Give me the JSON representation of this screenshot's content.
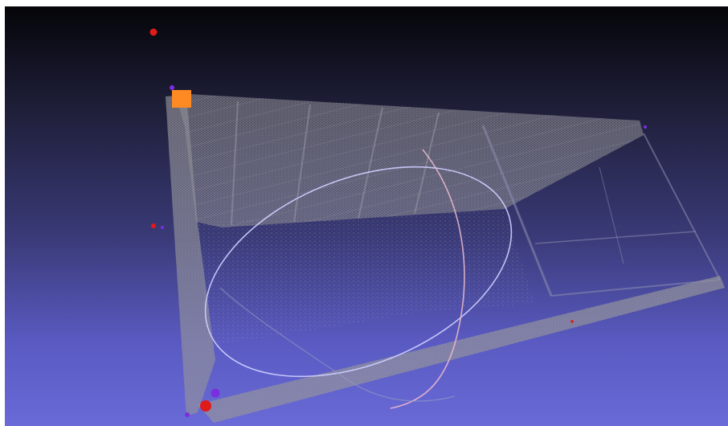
{
  "scene": {
    "description_hidden": "",
    "background_top_color": "#050509",
    "background_bottom_color": "#6a6ad8",
    "point_cloud_color": "#a9a9a9",
    "trackball_colors": [
      "#c8c8ff",
      "#e8b8c8",
      "#9aa0b8"
    ],
    "marker_colors": {
      "red": "#e11a1a",
      "purple": "#7a2ee0",
      "orange": "#ff8a24"
    }
  }
}
